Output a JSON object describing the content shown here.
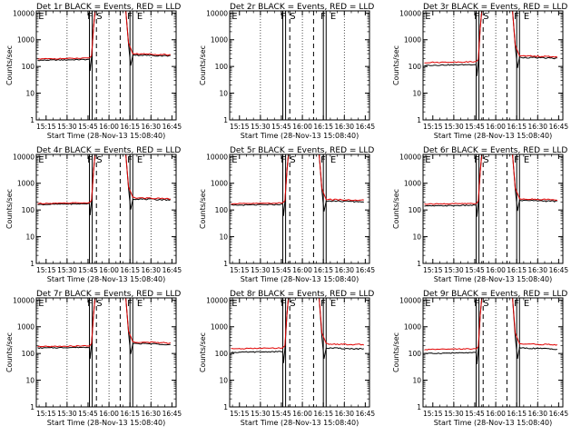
{
  "figure": {
    "background": "#ffffff",
    "black_color": "#000000",
    "red_color": "#e00000"
  },
  "panels": [
    {
      "title": "Det 1r BLACK = Events, RED = LLD",
      "flags": [
        "E",
        "F",
        "S",
        "F",
        "E"
      ],
      "black_pre": 170,
      "red_pre": 190,
      "black_post": 270,
      "red_post": 300
    },
    {
      "title": "Det 2r BLACK = Events, RED = LLD",
      "flags": [
        "E",
        "F",
        "S",
        "F",
        "E"
      ],
      "black_pre": null,
      "red_pre": null,
      "black_post": null,
      "red_post": null
    },
    {
      "title": "Det 3r BLACK = Events, RED = LLD",
      "flags": [
        "E",
        "F",
        "S",
        "F",
        "E"
      ],
      "black_pre": 110,
      "red_pre": 140,
      "black_post": 220,
      "red_post": 250
    },
    {
      "title": "Det 4r BLACK = Events, RED = LLD",
      "flags": [
        "E",
        "F",
        "S",
        "F",
        "E"
      ],
      "black_pre": 160,
      "red_pre": 175,
      "black_post": 260,
      "red_post": 290
    },
    {
      "title": "Det 5r BLACK = Events, RED = LLD",
      "flags": [
        "E",
        "F",
        "S",
        "F",
        "E"
      ],
      "black_pre": 150,
      "red_pre": 170,
      "black_post": 220,
      "red_post": 250
    },
    {
      "title": "Det 6r BLACK = Events, RED = LLD",
      "flags": [
        "E",
        "F",
        "S",
        "F",
        "E"
      ],
      "black_pre": 140,
      "red_pre": 165,
      "black_post": 230,
      "red_post": 260
    },
    {
      "title": "Det 7r BLACK = Events, RED = LLD",
      "flags": [
        "E",
        "F",
        "S",
        "F",
        "E"
      ],
      "black_pre": 160,
      "red_pre": 180,
      "black_post": 240,
      "red_post": 270
    },
    {
      "title": "Det 8r BLACK = Events, RED = LLD",
      "flags": [
        "E",
        "F",
        "S",
        "F",
        "E"
      ],
      "black_pre": 110,
      "red_pre": 150,
      "black_post": 160,
      "red_post": 230
    },
    {
      "title": "Det 9r BLACK = Events, RED = LLD",
      "flags": [
        "E",
        "F",
        "S",
        "F",
        "E"
      ],
      "black_pre": 100,
      "red_pre": 140,
      "black_post": 160,
      "red_post": 230
    }
  ],
  "chart_data": {
    "type": "line",
    "xlabel": "Start Time (28-Nov-13 15:08:40)",
    "ylabel": "Counts/sec",
    "x_tick_labels": [
      "15:15",
      "15:30",
      "15:45",
      "16:00",
      "16:15",
      "16:30",
      "16:45"
    ],
    "y_tick_labels": [
      "1",
      "10",
      "100",
      "1000",
      "10000"
    ],
    "y_scale": "log",
    "xlim": [
      "15:08",
      "16:48"
    ],
    "ylim": [
      1,
      12000
    ],
    "x_tick_minutes": [
      15,
      30,
      45,
      60,
      75,
      90,
      105
    ],
    "dotted_grid_minutes": [
      30,
      60,
      90
    ],
    "solid_vlines_minutes": [
      46,
      48,
      75,
      77
    ],
    "dashed_vlines_minutes": [
      51,
      68
    ],
    "flare_start_minute": 49,
    "flare_end_minute": 73,
    "series": [
      {
        "name": "Events",
        "color": "#000000"
      },
      {
        "name": "LLD",
        "color": "#e00000"
      }
    ]
  }
}
